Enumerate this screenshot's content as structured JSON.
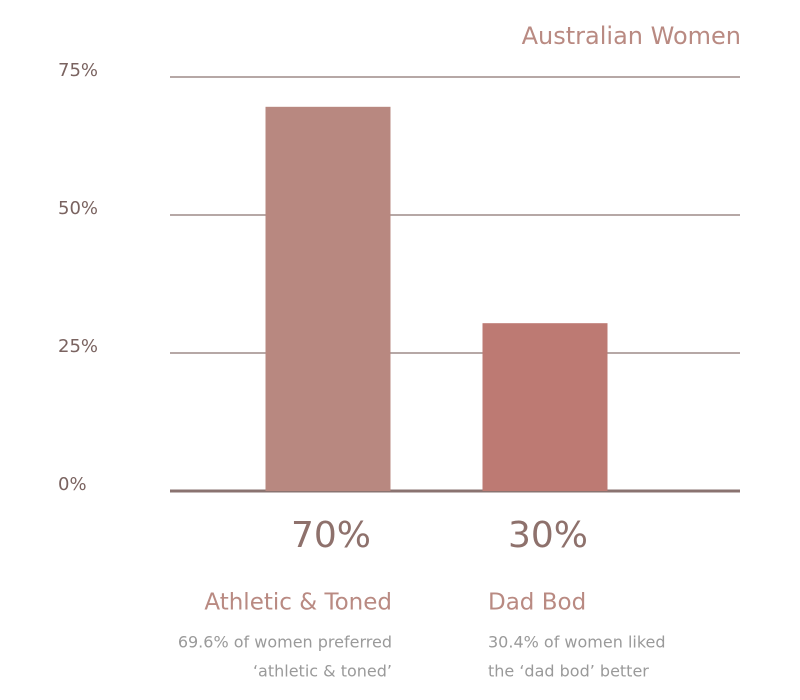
{
  "chart_data": {
    "type": "bar",
    "title": "Australian Women",
    "categories": [
      "Athletic & Toned",
      "Dad Bod"
    ],
    "values": [
      69.6,
      30.4
    ],
    "value_labels": [
      "70%",
      "30%"
    ],
    "colors": [
      "#b88880",
      "#bd7a73"
    ],
    "captions": [
      [
        "69.6% of women preferred",
        "‘athletic & toned’"
      ],
      [
        "30.4% of women liked",
        "the ‘dad bod’ better"
      ]
    ],
    "ylim": [
      0,
      75
    ],
    "yticks": [
      {
        "value": 0,
        "label": "0%"
      },
      {
        "value": 25,
        "label": "25%"
      },
      {
        "value": 50,
        "label": "50%"
      },
      {
        "value": 75,
        "label": "75%"
      }
    ],
    "grid": true
  }
}
